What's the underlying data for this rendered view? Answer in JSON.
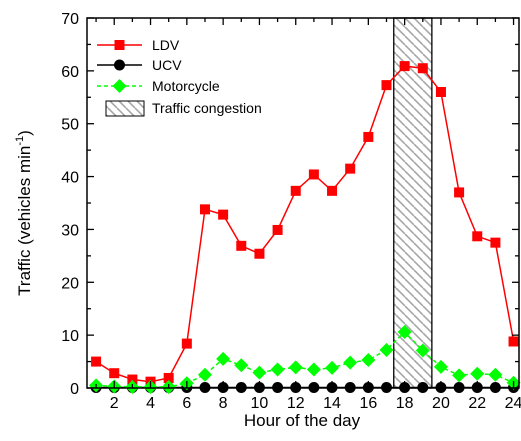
{
  "chart_data": {
    "type": "line",
    "xlabel": "Hour of the day",
    "ylabel": "Traffic (vehicles min",
    "ylabel_sup": "-1",
    "ylabel_close": ")",
    "xlim": [
      0.5,
      24.3
    ],
    "ylim": [
      0,
      70
    ],
    "x_ticks": [
      2,
      4,
      6,
      8,
      10,
      12,
      14,
      16,
      18,
      20,
      22,
      24
    ],
    "y_ticks": [
      0,
      10,
      20,
      30,
      40,
      50,
      60,
      70
    ],
    "x": [
      1,
      2,
      3,
      4,
      5,
      6,
      7,
      8,
      9,
      10,
      11,
      12,
      13,
      14,
      15,
      16,
      17,
      18,
      19,
      20,
      21,
      22,
      23,
      24
    ],
    "series": [
      {
        "name": "LDV",
        "color": "#ff0000",
        "marker": "square",
        "values": [
          5.0,
          2.8,
          1.6,
          1.2,
          1.9,
          8.4,
          33.8,
          32.8,
          26.9,
          25.4,
          29.9,
          37.3,
          40.4,
          37.3,
          41.5,
          47.5,
          57.3,
          60.9,
          60.5,
          56.0,
          37.0,
          28.7,
          27.5,
          8.8
        ]
      },
      {
        "name": "UCV",
        "color": "#000000",
        "marker": "circle",
        "values": [
          0.1,
          0.1,
          0.1,
          0.1,
          0.1,
          0.1,
          0.1,
          0.1,
          0.1,
          0.1,
          0.1,
          0.1,
          0.1,
          0.1,
          0.1,
          0.1,
          0.1,
          0.1,
          0.1,
          0.1,
          0.1,
          0.1,
          0.1,
          0.1
        ]
      },
      {
        "name": "Motorcycle",
        "color": "#00ff00",
        "marker": "diamond",
        "values": [
          0.5,
          0.3,
          0.2,
          0.2,
          0.2,
          0.9,
          2.5,
          5.5,
          4.3,
          2.9,
          3.5,
          3.9,
          3.5,
          3.8,
          4.8,
          5.3,
          7.2,
          10.6,
          7.1,
          4.0,
          2.4,
          2.7,
          2.5,
          1.0
        ]
      }
    ],
    "congestion": {
      "name": "Traffic congestion",
      "x_start": 17.4,
      "x_end": 19.5
    },
    "legend_position": "top-left",
    "grid": false
  }
}
